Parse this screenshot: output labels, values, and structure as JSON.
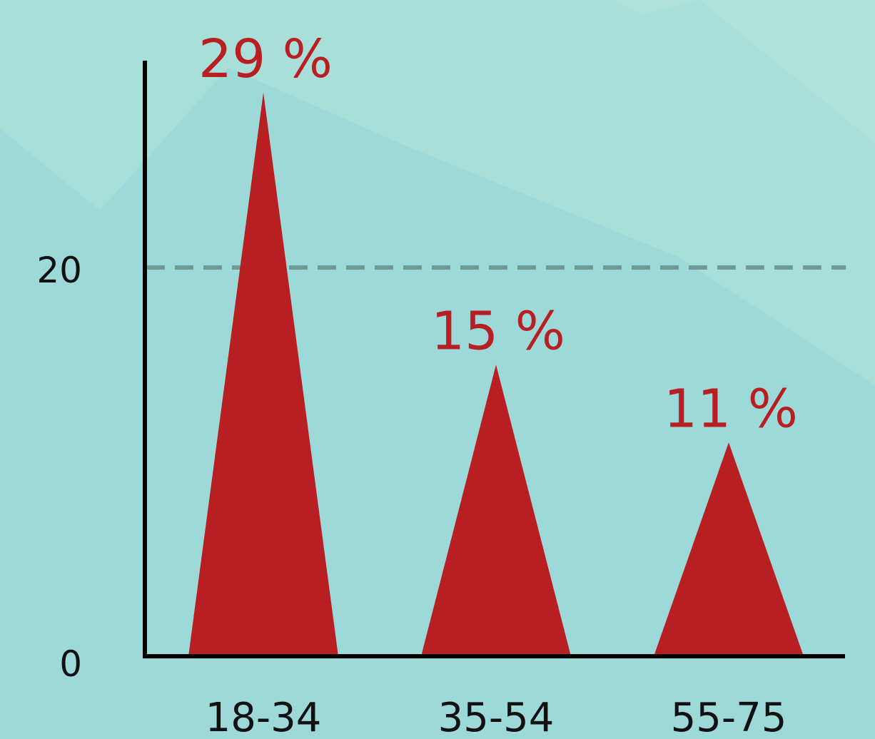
{
  "chart_data": {
    "type": "bar",
    "mark_shape": "triangle",
    "categories": [
      "18-34",
      "35-54",
      "55-75"
    ],
    "values": [
      29,
      15,
      11
    ],
    "data_labels": [
      "29 %",
      "15 %",
      "11 %"
    ],
    "yticks": [
      "0",
      "20"
    ],
    "reference_line": 20,
    "ylim": [
      0,
      29
    ],
    "grid": false,
    "title": "",
    "xlabel": "",
    "ylabel": "",
    "colors": {
      "bar": "#b81f23",
      "label": "#b81f23",
      "axis": "#000000",
      "reference_line": "#6f9a96",
      "background": "#9dd9d9",
      "background_shape_light": "#a8dfd8",
      "background_shape_mid": "#a4dcd9"
    }
  }
}
